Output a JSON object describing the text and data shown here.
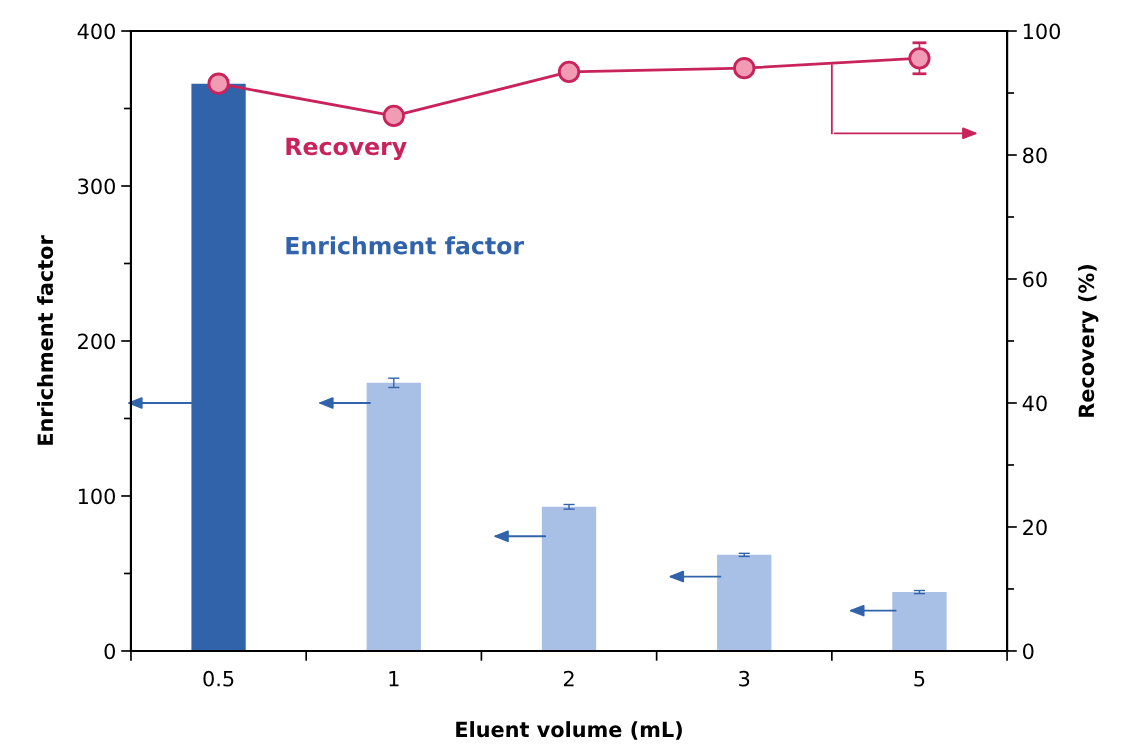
{
  "chart_data": {
    "type": "bar",
    "xlabel": "Eluent volume (mL)",
    "ylabel": "Enrichment factor",
    "y2label": "Recovery (%)",
    "categories": [
      "0.5",
      "1",
      "2",
      "3",
      "5"
    ],
    "series": [
      {
        "name": "Enrichment factor",
        "color": "#3163ab",
        "colors": [
          "#3163ab",
          "#a8bfe6",
          "#a8bfe6",
          "#a8bfe6",
          "#a8bfe6"
        ],
        "values": [
          366,
          173,
          93,
          62,
          38
        ],
        "errors": [
          null,
          3,
          1.5,
          1,
          1
        ]
      },
      {
        "name": "Recovery",
        "type": "line",
        "axis": "y2",
        "color": "#c8235a",
        "values": [
          91.5,
          86.3,
          93.4,
          94.0,
          95.6
        ],
        "errors": [
          null,
          1,
          null,
          null,
          2.5
        ]
      }
    ],
    "ylim": [
      0,
      400
    ],
    "yticks": [
      0,
      100,
      200,
      300,
      400
    ],
    "y2lim": [
      0,
      100
    ],
    "y2ticks": [
      0,
      20,
      40,
      60,
      80,
      100
    ],
    "marker": "circle",
    "line_style": "solid",
    "grid": false,
    "legend": false
  }
}
